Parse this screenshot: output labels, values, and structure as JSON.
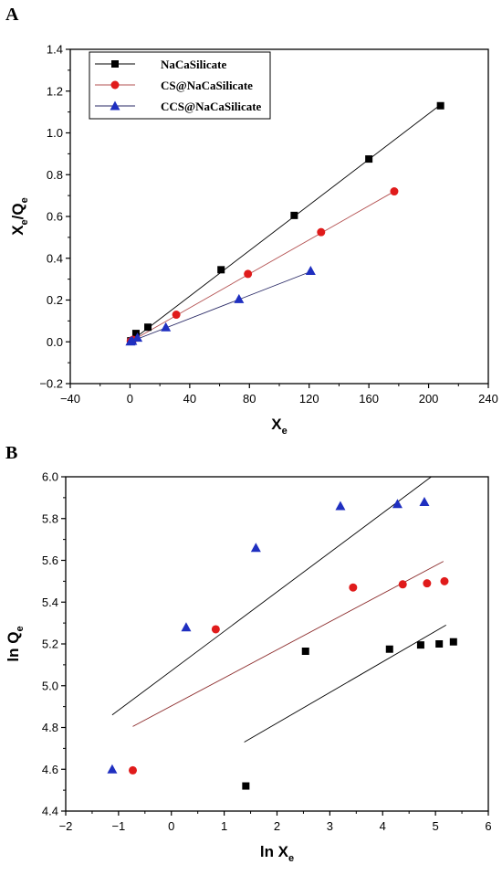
{
  "chart_data": [
    {
      "panel": "A",
      "type": "scatter",
      "xlabel": "X",
      "xlabel_sub": "e",
      "ylabel_parts": [
        {
          "t": "X",
          "sub": false
        },
        {
          "t": "e",
          "sub": true
        },
        {
          "t": "/Q",
          "sub": false
        },
        {
          "t": "e",
          "sub": true
        }
      ],
      "xlim": [
        -40,
        240
      ],
      "ylim": [
        -0.2,
        1.4
      ],
      "xticks": [
        -40,
        0,
        40,
        80,
        120,
        160,
        200,
        240
      ],
      "yticks": [
        -0.2,
        0.0,
        0.2,
        0.4,
        0.6,
        0.8,
        1.0,
        1.2,
        1.4
      ],
      "xtick_labels": [
        "−40",
        "0",
        "40",
        "80",
        "120",
        "160",
        "200",
        "240"
      ],
      "ytick_labels": [
        "−0.2",
        "0.0",
        "0.2",
        "0.4",
        "0.6",
        "0.8",
        "1.0",
        "1.2",
        "1.4"
      ],
      "grid": false,
      "legend_position": "top-left",
      "series": [
        {
          "name": "NaCaSilicate",
          "marker": "square",
          "color": "#000000",
          "line_color": "#000000",
          "x": [
            0.5,
            4,
            12,
            61,
            110,
            160,
            208
          ],
          "y": [
            0.005,
            0.04,
            0.07,
            0.345,
            0.605,
            0.875,
            1.13
          ],
          "fit_x": [
            0,
            208
          ],
          "fit_y": [
            0.0,
            1.135
          ]
        },
        {
          "name": "CS@NaCaSilicate",
          "marker": "circle",
          "color": "#e01b1b",
          "line_color": "#b35050",
          "x": [
            0.5,
            2,
            31,
            79,
            128,
            177
          ],
          "y": [
            0.003,
            0.01,
            0.13,
            0.325,
            0.525,
            0.72
          ],
          "fit_x": [
            0,
            177
          ],
          "fit_y": [
            0.0,
            0.72
          ]
        },
        {
          "name": "CCS@NaCaSilicate",
          "marker": "triangle",
          "color": "#1f2fc0",
          "line_color": "#2a2a66",
          "x": [
            0.3,
            1.5,
            5,
            24,
            73,
            121
          ],
          "y": [
            0.002,
            0.005,
            0.02,
            0.07,
            0.205,
            0.34
          ],
          "fit_x": [
            0,
            121
          ],
          "fit_y": [
            0.0,
            0.336
          ]
        }
      ]
    },
    {
      "panel": "B",
      "type": "scatter",
      "xlabel": "ln X",
      "xlabel_sub": "e",
      "ylabel_parts": [
        {
          "t": "ln Q",
          "sub": false
        },
        {
          "t": "e",
          "sub": true
        }
      ],
      "xlim": [
        -2,
        6
      ],
      "ylim": [
        4.4,
        6.0
      ],
      "xticks": [
        -2,
        -1,
        0,
        1,
        2,
        3,
        4,
        5,
        6
      ],
      "yticks": [
        4.4,
        4.6,
        4.8,
        5.0,
        5.2,
        5.4,
        5.6,
        5.8,
        6.0
      ],
      "xtick_labels": [
        "−2",
        "−1",
        "0",
        "1",
        "2",
        "3",
        "4",
        "5",
        "6"
      ],
      "ytick_labels": [
        "4.4",
        "4.6",
        "4.8",
        "5.0",
        "5.2",
        "5.4",
        "5.6",
        "5.8",
        "6.0"
      ],
      "grid": false,
      "legend_position": "none",
      "series": [
        {
          "marker": "triangle",
          "color": "#1f2fc0",
          "line_color": "#000000",
          "x": [
            -1.12,
            0.28,
            1.6,
            3.2,
            4.28,
            4.79
          ],
          "y": [
            4.6,
            5.28,
            5.66,
            5.86,
            5.87,
            5.88
          ],
          "fit_x": [
            -1.12,
            4.92
          ],
          "fit_y": [
            4.86,
            6.0
          ]
        },
        {
          "marker": "circle",
          "color": "#e01b1b",
          "line_color": "#8b2a2a",
          "x": [
            -0.73,
            0.84,
            3.44,
            4.38,
            4.84,
            5.17
          ],
          "y": [
            4.595,
            5.27,
            5.47,
            5.485,
            5.49,
            5.5
          ],
          "fit_x": [
            -0.73,
            5.15
          ],
          "fit_y": [
            4.805,
            5.595
          ]
        },
        {
          "marker": "square",
          "color": "#000000",
          "line_color": "#000000",
          "x": [
            1.41,
            2.54,
            4.13,
            4.72,
            5.07,
            5.34
          ],
          "y": [
            4.52,
            5.165,
            5.175,
            5.195,
            5.2,
            5.21
          ],
          "fit_x": [
            1.38,
            5.2
          ],
          "fit_y": [
            4.73,
            5.29
          ]
        }
      ]
    }
  ]
}
